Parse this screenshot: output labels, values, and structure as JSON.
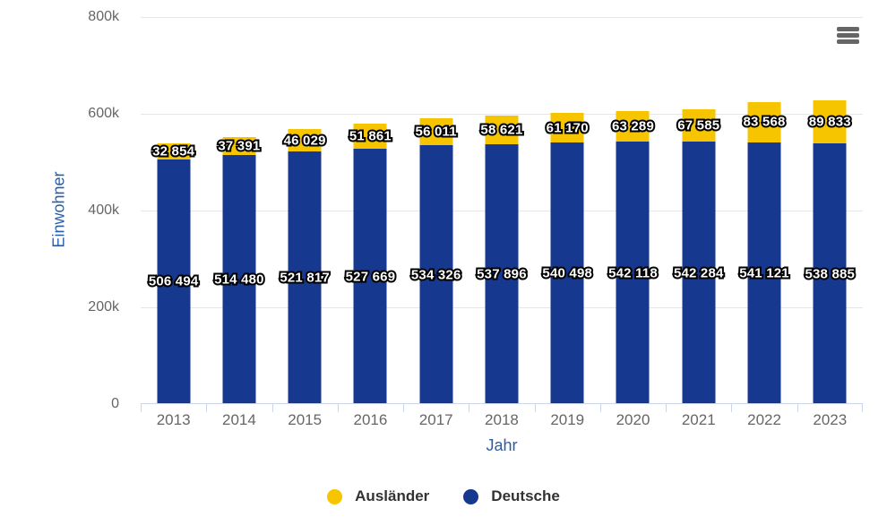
{
  "colors": {
    "background": "#FFFFFF",
    "auslaender_yellow": "#F6C500",
    "deutsche_blue": "#16398F",
    "axis_title_blue": "#2A5DA8",
    "tick_label_gray": "#666666",
    "gridline_gray": "#E6E6E6",
    "axis_line_blue_gray": "#CCD6EB",
    "data_label_fill": "#FFFFFF",
    "data_label_outline": "#000000",
    "legend_text": "#333333",
    "menu_icon_gray": "#666666"
  },
  "menu_button": {
    "icon": "hamburger-menu-icon"
  },
  "chart_data": {
    "type": "bar",
    "stacked": true,
    "title": "",
    "xlabel": "Jahr",
    "ylabel": "Einwohner",
    "ylim": [
      0,
      800000
    ],
    "grid": "horizontal",
    "legend_position": "bottom-center",
    "categories": [
      "2013",
      "2014",
      "2015",
      "2016",
      "2017",
      "2018",
      "2019",
      "2020",
      "2021",
      "2022",
      "2023"
    ],
    "series": [
      {
        "name": "Ausländer",
        "color": "#F6C500",
        "stack_position": "top",
        "values": [
          32854,
          37391,
          46029,
          51861,
          56011,
          58621,
          61170,
          63289,
          67585,
          83568,
          89833
        ],
        "labels": [
          "32 854",
          "37 391",
          "46 029",
          "51 861",
          "56 011",
          "58 621",
          "61 170",
          "63 289",
          "67 585",
          "83 568",
          "89 833"
        ]
      },
      {
        "name": "Deutsche",
        "color": "#16398F",
        "stack_position": "bottom",
        "values": [
          506494,
          514480,
          521817,
          527669,
          534326,
          537896,
          540498,
          542118,
          542284,
          541121,
          538885
        ],
        "labels": [
          "506 494",
          "514 480",
          "521 817",
          "527 669",
          "534 326",
          "537 896",
          "540 498",
          "542 118",
          "542 284",
          "541 121",
          "538 885"
        ]
      }
    ],
    "yticks": [
      {
        "value": 800000,
        "label": "800k"
      },
      {
        "value": 600000,
        "label": "600k"
      },
      {
        "value": 400000,
        "label": "400k"
      },
      {
        "value": 200000,
        "label": "200k"
      },
      {
        "value": 0,
        "label": "0"
      }
    ]
  }
}
